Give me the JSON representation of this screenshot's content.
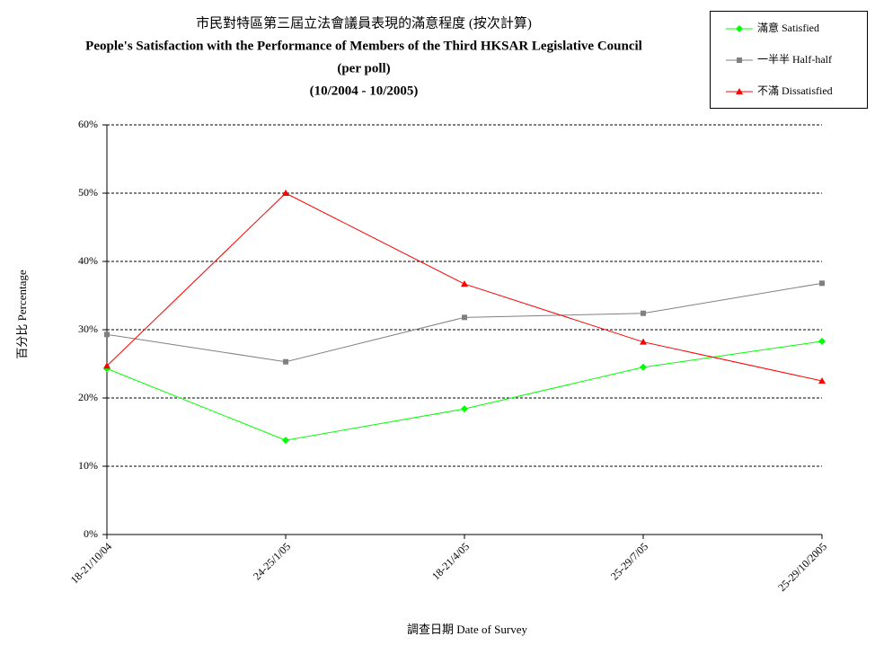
{
  "chart_data": {
    "type": "line",
    "title": "市民對特區第三屆立法會議員表現的滿意程度 (按次計算)",
    "subtitle": "People's Satisfaction with the Performance of Members of the Third HKSAR Legislative Council",
    "subtitle2": "(per poll)",
    "subtitle3": "(10/2004 - 10/2005)",
    "x_label": "調查日期 Date of Survey",
    "y_label": "百分比 Percentage",
    "categories": [
      "18-21/10/04",
      "24-25/1/05",
      "18-21/4/05",
      "25-29/7/05",
      "25-29/10/2005"
    ],
    "series": [
      {
        "name": "滿意 Satisfied",
        "color": "#00ff00",
        "marker": "diamond",
        "values": [
          24.3,
          13.8,
          18.4,
          24.5,
          28.3
        ]
      },
      {
        "name": "一半半 Half-half",
        "color": "#808080",
        "marker": "square",
        "values": [
          29.3,
          25.3,
          31.8,
          32.4,
          36.8
        ]
      },
      {
        "name": "不滿 Dissatisfied",
        "color": "#ff0000",
        "marker": "triangle",
        "values": [
          24.7,
          50.0,
          36.7,
          28.2,
          22.5
        ]
      }
    ],
    "ylim": [
      0,
      60
    ],
    "yticks": [
      {
        "value": 0,
        "label": "0%"
      },
      {
        "value": 10,
        "label": "10%"
      },
      {
        "value": 20,
        "label": "20%"
      },
      {
        "value": 30,
        "label": "30%"
      },
      {
        "value": 40,
        "label": "40%"
      },
      {
        "value": 50,
        "label": "50%"
      },
      {
        "value": 60,
        "label": "60%"
      }
    ],
    "grid": true,
    "legend": "top-right"
  }
}
